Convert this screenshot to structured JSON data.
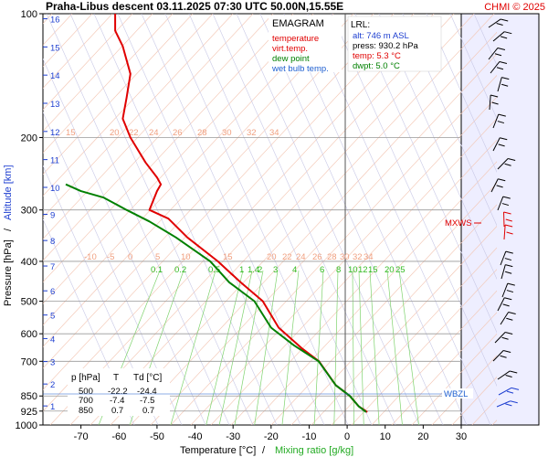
{
  "header": {
    "title": "Praha-Libus  descent  03.11.2025 07:30 UTC  50.00N,15.55E",
    "copyright": "CHMI © 2025"
  },
  "legend": {
    "heading": "EMAGRAM",
    "items": [
      {
        "label": "temperature",
        "color": "#e00000"
      },
      {
        "label": "virt.temp.",
        "color": "#e00000"
      },
      {
        "label": "dew point",
        "color": "#008000"
      },
      {
        "label": "wet bulb temp.",
        "color": "#1e5fd0"
      }
    ]
  },
  "lrl": {
    "heading": "LRL:",
    "alt": "alt: 746 m ASL",
    "press": "press: 930.2 hPa",
    "temp": "temp: 5.3 °C",
    "dwpt": "dwpt: 5.0 °C"
  },
  "table": {
    "headers": [
      "p [hPa]",
      "T",
      "Td [°C]"
    ],
    "rows": [
      [
        "500",
        "-22.2",
        "-24.4"
      ],
      [
        "700",
        "-7.4",
        "-7.5"
      ],
      [
        "850",
        "0.7",
        "0.7"
      ]
    ]
  },
  "markers": {
    "mxws": "MXWS",
    "wbzl": "WBZL"
  },
  "chart_data": {
    "type": "line",
    "xlabel": "Temperature [°C]",
    "xlabel_sep": "/",
    "xlabel2": "Mixing ratio [g/kg]",
    "ylabel": "Pressure [hPa]",
    "ylabel_sep": "/",
    "ylabel2": "Altitude [km]",
    "xlim": [
      -80,
      30
    ],
    "ylim": [
      1000,
      100
    ],
    "y_scale": "log",
    "x_ticks": [
      "-70",
      "-60",
      "-50",
      "-40",
      "-30",
      "-20",
      "-10",
      "0",
      "10",
      "20",
      "30"
    ],
    "y_ticks": [
      "100",
      "200",
      "300",
      "400",
      "500",
      "600",
      "700",
      "850",
      "925",
      "1000"
    ],
    "altitude_ticks": [
      "1",
      "2",
      "3",
      "4",
      "5",
      "6",
      "7",
      "8",
      "9",
      "10",
      "11",
      "12",
      "13",
      "14",
      "15",
      "16"
    ],
    "isotherm_labels_upper": [
      "15",
      "20",
      "22",
      "24",
      "26",
      "28",
      "30",
      "32",
      "34"
    ],
    "isotherm_labels_mid": [
      "-10",
      "-5",
      "0",
      "5",
      "10",
      "15",
      "20",
      "22",
      "24",
      "26",
      "28",
      "30",
      "32",
      "34"
    ],
    "mixing_ratio_labels": [
      "0.1",
      "0.2",
      "0.5",
      "1",
      "1.4",
      "2",
      "3",
      "4",
      "6",
      "8",
      "10",
      "12",
      "15",
      "20",
      "25"
    ],
    "series": [
      {
        "name": "temperature",
        "color": "#e00000",
        "points": [
          [
            5.3,
            930
          ],
          [
            3,
            900
          ],
          [
            0.7,
            850
          ],
          [
            -3,
            800
          ],
          [
            -7.4,
            700
          ],
          [
            -12,
            650
          ],
          [
            -18,
            580
          ],
          [
            -22.2,
            500
          ],
          [
            -28,
            450
          ],
          [
            -34,
            400
          ],
          [
            -42,
            350
          ],
          [
            -47,
            315
          ],
          [
            -52,
            300
          ],
          [
            -50,
            270
          ],
          [
            -49,
            260
          ],
          [
            -50,
            250
          ],
          [
            -53,
            230
          ],
          [
            -57,
            200
          ],
          [
            -59,
            180
          ],
          [
            -58,
            160
          ],
          [
            -57,
            140
          ],
          [
            -59,
            120
          ],
          [
            -61,
            110
          ],
          [
            -61,
            100
          ]
        ]
      },
      {
        "name": "dew point",
        "color": "#008000",
        "points": [
          [
            5,
            930
          ],
          [
            3,
            900
          ],
          [
            0.7,
            850
          ],
          [
            -3,
            800
          ],
          [
            -7.5,
            700
          ],
          [
            -14,
            640
          ],
          [
            -20,
            580
          ],
          [
            -24.4,
            500
          ],
          [
            -31,
            450
          ],
          [
            -36,
            400
          ],
          [
            -45,
            350
          ],
          [
            -52,
            320
          ],
          [
            -58,
            300
          ],
          [
            -64,
            280
          ],
          [
            -70,
            270
          ],
          [
            -74,
            260
          ]
        ]
      }
    ]
  }
}
